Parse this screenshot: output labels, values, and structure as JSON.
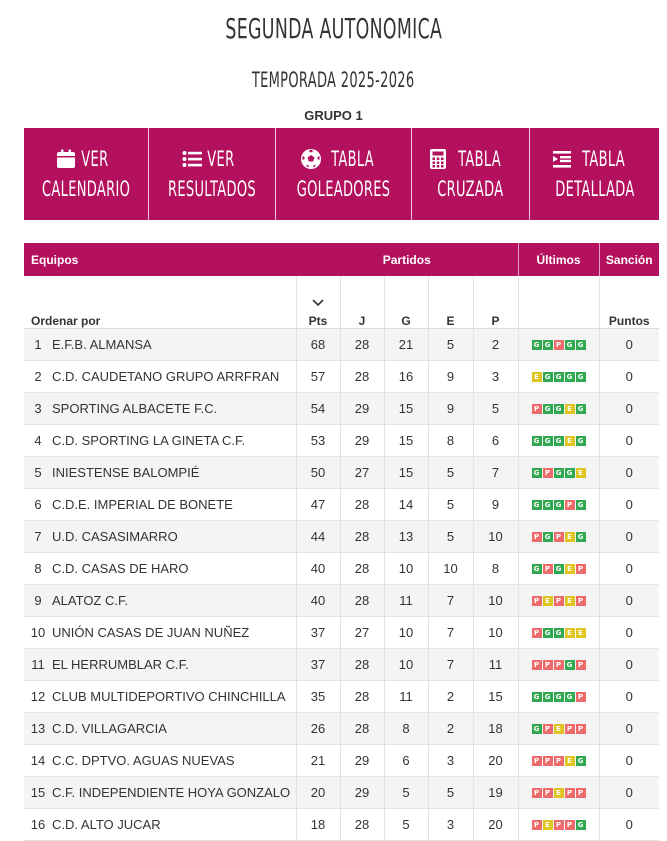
{
  "header": {
    "title": "SEGUNDA AUTONOMICA",
    "season": "TEMPORADA 2025-2026",
    "group": "GRUPO 1"
  },
  "nav": [
    {
      "icon": "calendar-icon",
      "line1": "VER",
      "line2": "CALENDARIO"
    },
    {
      "icon": "list-icon",
      "line1": "VER",
      "line2": "RESULTADOS"
    },
    {
      "icon": "soccer-ball-icon",
      "line1": "TABLA",
      "line2": "GOLEADORES"
    },
    {
      "icon": "calculator-icon",
      "line1": "TABLA",
      "line2": "CRUZADA"
    },
    {
      "icon": "indent-list-icon",
      "line1": "TABLA",
      "line2": "DETALLADA"
    }
  ],
  "table": {
    "header_top": {
      "teams": "Equipos",
      "matches": "Partidos",
      "last": "Últimos",
      "sanction": "Sanción"
    },
    "header_sub": {
      "sort_by": "Ordenar por",
      "pts": "Pts",
      "j": "J",
      "g": "G",
      "e": "E",
      "p": "P",
      "points": "Puntos"
    },
    "result_colors": {
      "G": "#2fa84f",
      "E": "#e0c51f",
      "P": "#ee6b6b"
    },
    "accent_color": "#b3105e",
    "rows": [
      {
        "pos": "1",
        "team": "E.F.B. ALMANSA",
        "pts": "68",
        "j": "28",
        "g": "21",
        "e": "5",
        "p": "2",
        "last": [
          "G",
          "G",
          "P",
          "G",
          "G"
        ],
        "sanction": "0"
      },
      {
        "pos": "2",
        "team": "C.D. CAUDETANO GRUPO ARRFRAN",
        "pts": "57",
        "j": "28",
        "g": "16",
        "e": "9",
        "p": "3",
        "last": [
          "E",
          "G",
          "G",
          "G",
          "G"
        ],
        "sanction": "0"
      },
      {
        "pos": "3",
        "team": "SPORTING ALBACETE F.C.",
        "pts": "54",
        "j": "29",
        "g": "15",
        "e": "9",
        "p": "5",
        "last": [
          "P",
          "G",
          "G",
          "E",
          "G"
        ],
        "sanction": "0"
      },
      {
        "pos": "4",
        "team": "C.D. SPORTING LA GINETA C.F.",
        "pts": "53",
        "j": "29",
        "g": "15",
        "e": "8",
        "p": "6",
        "last": [
          "G",
          "G",
          "G",
          "E",
          "G"
        ],
        "sanction": "0"
      },
      {
        "pos": "5",
        "team": "INIESTENSE BALOMPIÉ",
        "pts": "50",
        "j": "27",
        "g": "15",
        "e": "5",
        "p": "7",
        "last": [
          "G",
          "P",
          "G",
          "G",
          "E"
        ],
        "sanction": "0"
      },
      {
        "pos": "6",
        "team": "C.D.E. IMPERIAL DE BONETE",
        "pts": "47",
        "j": "28",
        "g": "14",
        "e": "5",
        "p": "9",
        "last": [
          "G",
          "G",
          "G",
          "P",
          "G"
        ],
        "sanction": "0"
      },
      {
        "pos": "7",
        "team": "U.D. CASASIMARRO",
        "pts": "44",
        "j": "28",
        "g": "13",
        "e": "5",
        "p": "10",
        "last": [
          "P",
          "G",
          "P",
          "E",
          "G"
        ],
        "sanction": "0"
      },
      {
        "pos": "8",
        "team": "C.D. CASAS DE HARO",
        "pts": "40",
        "j": "28",
        "g": "10",
        "e": "10",
        "p": "8",
        "last": [
          "G",
          "P",
          "G",
          "E",
          "P"
        ],
        "sanction": "0"
      },
      {
        "pos": "9",
        "team": "ALATOZ C.F.",
        "pts": "40",
        "j": "28",
        "g": "11",
        "e": "7",
        "p": "10",
        "last": [
          "P",
          "E",
          "P",
          "E",
          "P"
        ],
        "sanction": "0"
      },
      {
        "pos": "10",
        "team": "UNIÓN CASAS DE JUAN NUÑEZ",
        "pts": "37",
        "j": "27",
        "g": "10",
        "e": "7",
        "p": "10",
        "last": [
          "P",
          "G",
          "G",
          "E",
          "E"
        ],
        "sanction": "0"
      },
      {
        "pos": "11",
        "team": "EL HERRUMBLAR C.F.",
        "pts": "37",
        "j": "28",
        "g": "10",
        "e": "7",
        "p": "11",
        "last": [
          "P",
          "P",
          "P",
          "G",
          "P"
        ],
        "sanction": "0"
      },
      {
        "pos": "12",
        "team": "CLUB MULTIDEPORTIVO CHINCHILLA",
        "pts": "35",
        "j": "28",
        "g": "11",
        "e": "2",
        "p": "15",
        "last": [
          "G",
          "G",
          "G",
          "G",
          "P"
        ],
        "sanction": "0"
      },
      {
        "pos": "13",
        "team": "C.D. VILLAGARCIA",
        "pts": "26",
        "j": "28",
        "g": "8",
        "e": "2",
        "p": "18",
        "last": [
          "G",
          "P",
          "E",
          "P",
          "P"
        ],
        "sanction": "0"
      },
      {
        "pos": "14",
        "team": "C.C. DPTVO. AGUAS NUEVAS",
        "pts": "21",
        "j": "29",
        "g": "6",
        "e": "3",
        "p": "20",
        "last": [
          "P",
          "P",
          "P",
          "E",
          "G"
        ],
        "sanction": "0"
      },
      {
        "pos": "15",
        "team": "C.F. INDEPENDIENTE HOYA GONZALO",
        "pts": "20",
        "j": "29",
        "g": "5",
        "e": "5",
        "p": "19",
        "last": [
          "P",
          "P",
          "E",
          "P",
          "P"
        ],
        "sanction": "0"
      },
      {
        "pos": "16",
        "team": "C.D. ALTO JUCAR",
        "pts": "18",
        "j": "28",
        "g": "5",
        "e": "3",
        "p": "20",
        "last": [
          "P",
          "E",
          "P",
          "P",
          "G"
        ],
        "sanction": "0"
      }
    ]
  }
}
